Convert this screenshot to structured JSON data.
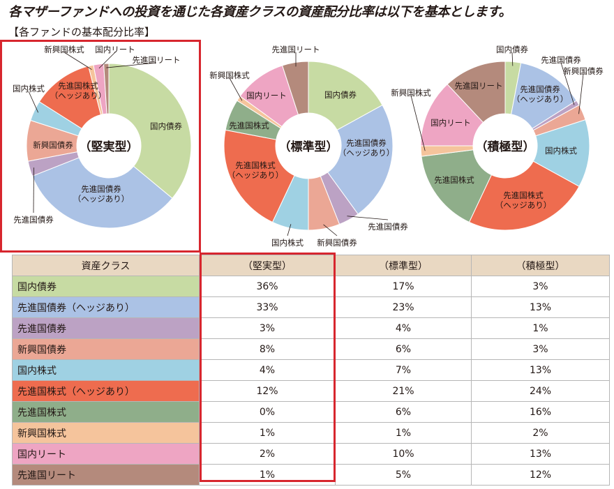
{
  "header": {
    "title": "各マザーファンドへの投資を通じた各資産クラスの資産配分比率は以下を基本とします。",
    "subtitle": "【各ファンドの基本配分比率】"
  },
  "colors": {
    "国内債券": "#c7dba3",
    "先進国債券（ヘッジあり）": "#abc2e5",
    "先進国債券": "#bca2c4",
    "新興国債券": "#eba795",
    "国内株式": "#9fd1e3",
    "先進国株式（ヘッジあり）": "#ee6c4f",
    "先進国株式": "#8fae8a",
    "新興国株式": "#f5c49c",
    "国内リート": "#eea5c3",
    "先進国リート": "#b48a7c",
    "highlight": "#d7262e",
    "table_header": "#e9d8c2"
  },
  "chart_data": [
    {
      "type": "pie",
      "variant": "donut",
      "title": "（堅実型）",
      "categories": [
        "国内債券",
        "先進国債券（ヘッジあり）",
        "先進国債券",
        "新興国債券",
        "国内株式",
        "先進国株式（ヘッジあり）",
        "先進国株式",
        "新興国株式",
        "国内リート",
        "先進国リート"
      ],
      "values": [
        36,
        33,
        3,
        8,
        4,
        12,
        0,
        1,
        2,
        1
      ],
      "labels": [
        {
          "category": "国内債券",
          "text": [
            "国内債券"
          ]
        },
        {
          "category": "先進国債券（ヘッジあり）",
          "text": [
            "先進国債券",
            "（ヘッジあり）"
          ]
        },
        {
          "category": "先進国債券",
          "text": [
            "先進国債券"
          ]
        },
        {
          "category": "新興国債券",
          "text": [
            "新興国債券"
          ]
        },
        {
          "category": "国内株式",
          "text": [
            "国内株式"
          ]
        },
        {
          "category": "先進国株式（ヘッジあり）",
          "text": [
            "先進国株式",
            "（ヘッジあり）"
          ]
        },
        {
          "category": "新興国株式",
          "text": [
            "新興国株式"
          ]
        },
        {
          "category": "国内リート",
          "text": [
            "国内リート"
          ]
        },
        {
          "category": "先進国リート",
          "text": [
            "先進国リート"
          ]
        }
      ]
    },
    {
      "type": "pie",
      "variant": "donut",
      "title": "（標準型）",
      "categories": [
        "国内債券",
        "先進国債券（ヘッジあり）",
        "先進国債券",
        "新興国債券",
        "国内株式",
        "先進国株式（ヘッジあり）",
        "先進国株式",
        "新興国株式",
        "国内リート",
        "先進国リート"
      ],
      "values": [
        17,
        23,
        4,
        6,
        7,
        21,
        6,
        1,
        10,
        5
      ],
      "labels": [
        {
          "category": "国内債券",
          "text": [
            "国内債券"
          ]
        },
        {
          "category": "先進国債券（ヘッジあり）",
          "text": [
            "先進国債券",
            "（ヘッジあり）"
          ]
        },
        {
          "category": "先進国債券",
          "text": [
            "先進国債券"
          ]
        },
        {
          "category": "新興国債券",
          "text": [
            "新興国債券"
          ]
        },
        {
          "category": "国内株式",
          "text": [
            "国内株式"
          ]
        },
        {
          "category": "先進国株式（ヘッジあり）",
          "text": [
            "先進国株式",
            "（ヘッジあり）"
          ]
        },
        {
          "category": "先進国株式",
          "text": [
            "先進国株式"
          ]
        },
        {
          "category": "新興国株式",
          "text": [
            "新興国株式"
          ]
        },
        {
          "category": "国内リート",
          "text": [
            "国内リート"
          ]
        },
        {
          "category": "先進国リート",
          "text": [
            "先進国リート"
          ]
        }
      ]
    },
    {
      "type": "pie",
      "variant": "donut",
      "title": "（積極型）",
      "categories": [
        "国内債券",
        "先進国債券（ヘッジあり）",
        "先進国債券",
        "新興国債券",
        "国内株式",
        "先進国株式（ヘッジあり）",
        "先進国株式",
        "新興国株式",
        "国内リート",
        "先進国リート"
      ],
      "values": [
        3,
        13,
        1,
        3,
        13,
        24,
        16,
        2,
        13,
        12
      ],
      "labels": [
        {
          "category": "国内債券",
          "text": [
            "国内債券"
          ]
        },
        {
          "category": "先進国債券（ヘッジあり）",
          "text": [
            "先進国債券",
            "（ヘッジあり）"
          ]
        },
        {
          "category": "先進国債券",
          "text": [
            "先進国債券"
          ]
        },
        {
          "category": "新興国債券",
          "text": [
            "新興国債券"
          ]
        },
        {
          "category": "国内株式",
          "text": [
            "国内株式"
          ]
        },
        {
          "category": "先進国株式（ヘッジあり）",
          "text": [
            "先進国株式",
            "（ヘッジあり）"
          ]
        },
        {
          "category": "先進国株式",
          "text": [
            "先進国株式"
          ]
        },
        {
          "category": "新興国株式",
          "text": [
            "新興国株式"
          ]
        },
        {
          "category": "国内リート",
          "text": [
            "国内リート"
          ]
        },
        {
          "category": "先進国リート",
          "text": [
            "先進国リート"
          ]
        }
      ]
    },
    {
      "type": "table",
      "columns": [
        "資産クラス",
        "（堅実型）",
        "（標準型）",
        "（積極型）"
      ],
      "rows": [
        [
          "国内債券",
          "36%",
          "17%",
          "3%"
        ],
        [
          "先進国債券（ヘッジあり）",
          "33%",
          "23%",
          "13%"
        ],
        [
          "先進国債券",
          "3%",
          "4%",
          "1%"
        ],
        [
          "新興国債券",
          "8%",
          "6%",
          "3%"
        ],
        [
          "国内株式",
          "4%",
          "7%",
          "13%"
        ],
        [
          "先進国株式（ヘッジあり）",
          "12%",
          "21%",
          "24%"
        ],
        [
          "先進国株式",
          "0%",
          "6%",
          "16%"
        ],
        [
          "新興国株式",
          "1%",
          "1%",
          "2%"
        ],
        [
          "国内リート",
          "2%",
          "10%",
          "13%"
        ],
        [
          "先進国リート",
          "1%",
          "5%",
          "12%"
        ]
      ]
    }
  ]
}
